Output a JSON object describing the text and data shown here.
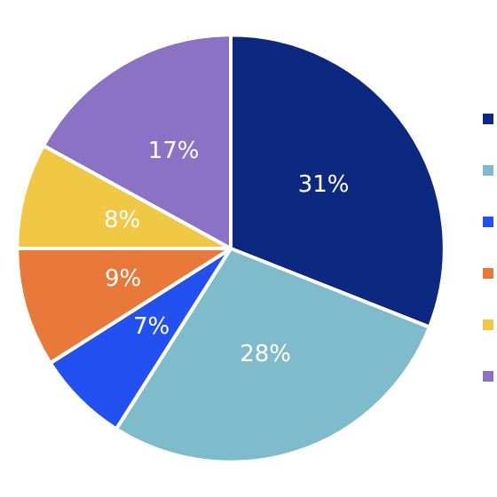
{
  "chart_data": {
    "type": "pie",
    "categories": [
      null,
      null,
      null,
      null,
      null,
      null
    ],
    "values": [
      31,
      28,
      7,
      9,
      8,
      17
    ],
    "value_labels": [
      "31%",
      "28%",
      "7%",
      "9%",
      "8%",
      "17%"
    ],
    "colors": [
      "#0c2880",
      "#7fbccb",
      "#2350f0",
      "#e8793a",
      "#f0c843",
      "#8b72c4"
    ]
  }
}
